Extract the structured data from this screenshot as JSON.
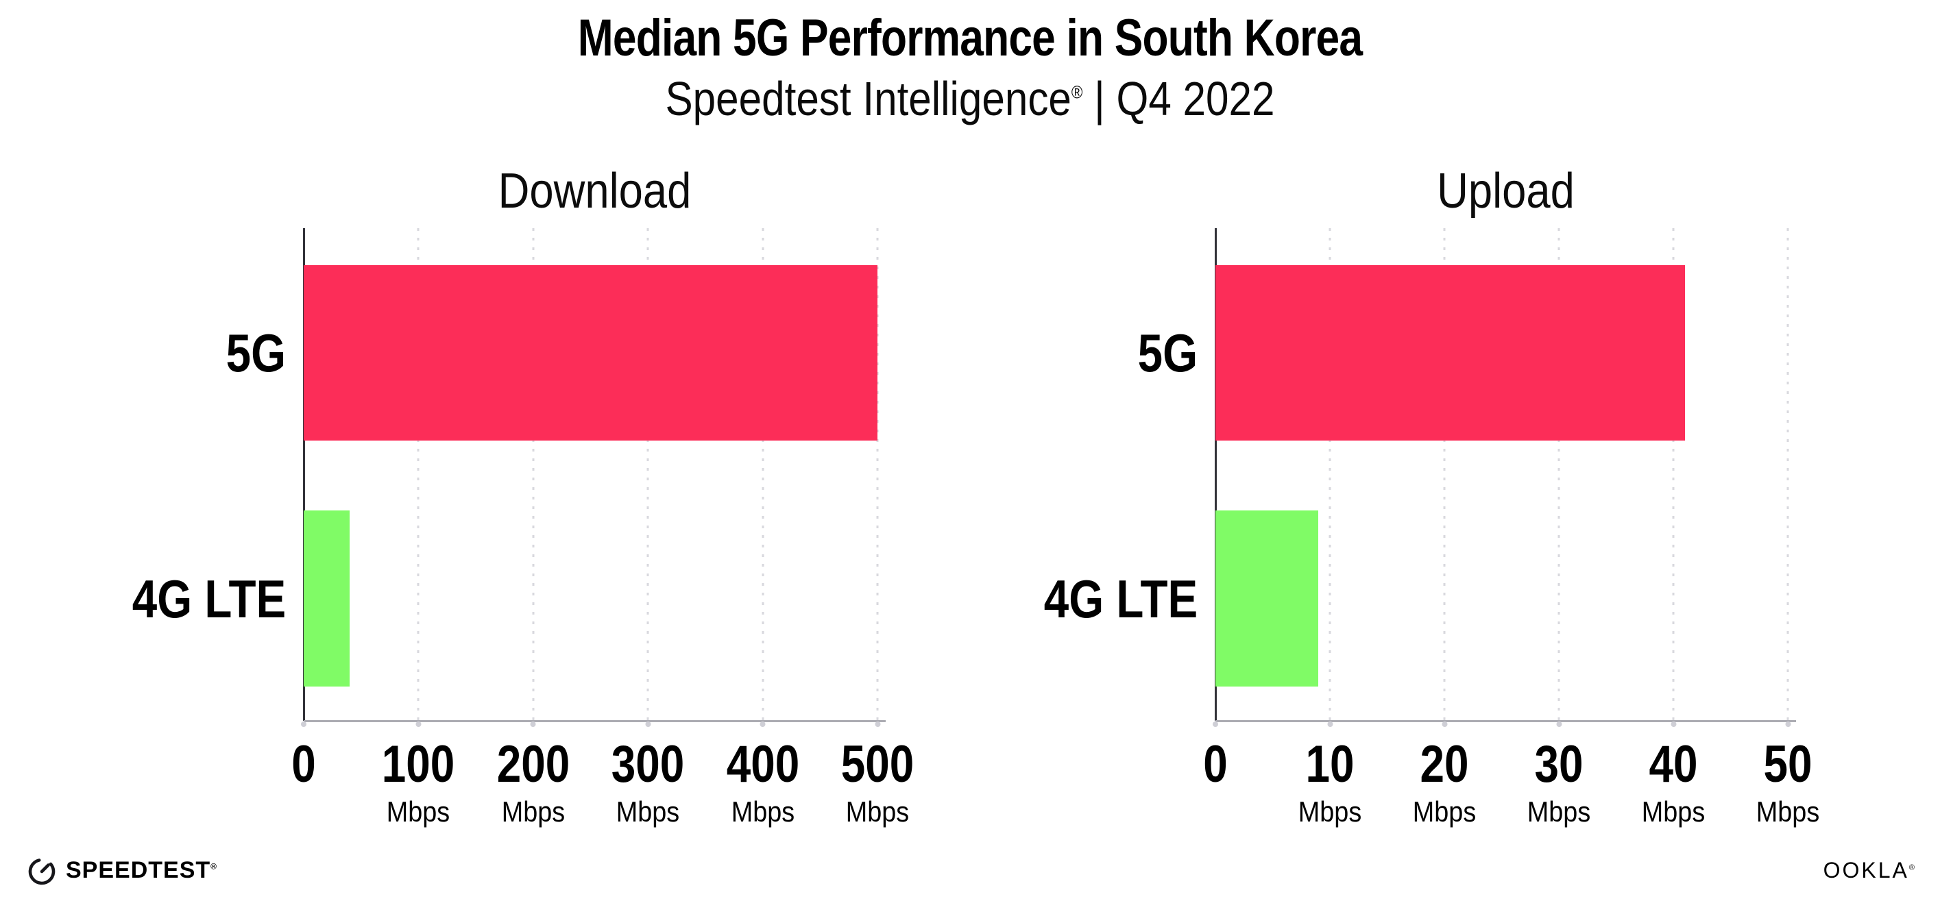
{
  "header": {
    "title": "Median 5G Performance in South Korea",
    "subtitle_brand": "Speedtest Intelligence",
    "subtitle_reg": "®",
    "subtitle_rest": " | Q4 2022"
  },
  "chart_data": [
    {
      "type": "bar",
      "orientation": "horizontal",
      "title": "Download",
      "categories": [
        "5G",
        "4G LTE"
      ],
      "values": [
        500,
        40
      ],
      "value_unit": "Mbps",
      "xlim": [
        0,
        500
      ],
      "xticks": [
        0,
        100,
        200,
        300,
        400,
        500
      ],
      "tick_unit": "Mbps",
      "bar_colors": [
        "#fc2d58",
        "#80fb66"
      ],
      "grid": "dotted vertical gridlines at each tick",
      "legend": "none"
    },
    {
      "type": "bar",
      "orientation": "horizontal",
      "title": "Upload",
      "categories": [
        "5G",
        "4G LTE"
      ],
      "values": [
        41,
        9
      ],
      "value_unit": "Mbps",
      "xlim": [
        0,
        50
      ],
      "xticks": [
        0,
        10,
        20,
        30,
        40,
        50
      ],
      "tick_unit": "Mbps",
      "bar_colors": [
        "#fc2d58",
        "#80fb66"
      ],
      "grid": "dotted vertical gridlines at each tick",
      "legend": "none"
    }
  ],
  "footer": {
    "speedtest_wordmark": "SPEEDTEST",
    "speedtest_reg": "®",
    "ookla_wordmark": "OOKLA",
    "ookla_reg": "®"
  },
  "colors": {
    "bar_5g": "#fc2d58",
    "bar_4g_lte": "#80fb66",
    "gridline": "#d8d8de",
    "x_axis_line": "#ababb2",
    "y_axis_line": "#33333a",
    "text": "#000000",
    "background": "#ffffff"
  }
}
